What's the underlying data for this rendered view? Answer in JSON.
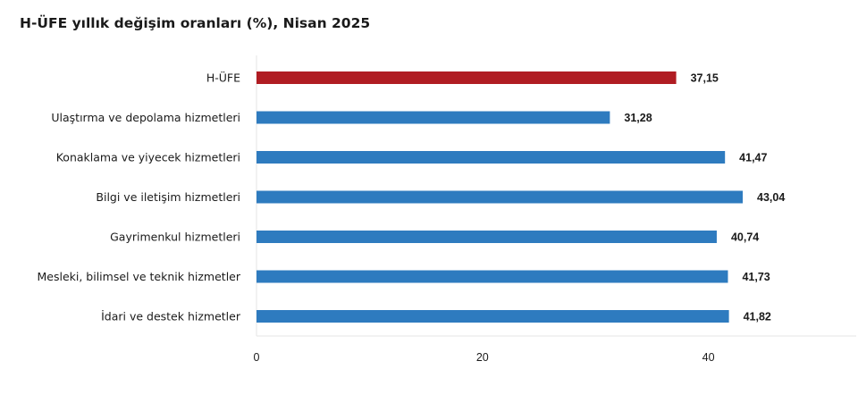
{
  "chart_data": {
    "type": "bar",
    "orientation": "horizontal",
    "title": "H-ÜFE yıllık değişim oranları (%), Nisan 2025",
    "categories": [
      "H-ÜFE",
      "Ulaştırma ve depolama hizmetleri",
      "Konaklama ve yiyecek hizmetleri",
      "Bilgi ve iletişim hizmetleri",
      "Gayrimenkul hizmetleri",
      "Mesleki, bilimsel ve teknik hizmetler",
      "İdari ve destek hizmetler"
    ],
    "values": [
      37.15,
      31.28,
      41.47,
      43.04,
      40.74,
      41.73,
      41.82
    ],
    "value_labels": [
      "37,15",
      "31,28",
      "41,47",
      "43,04",
      "40,74",
      "41,73",
      "41,82"
    ],
    "xlim": [
      0,
      53
    ],
    "x_ticks": [
      0,
      20,
      40
    ],
    "x_tick_labels": [
      "0",
      "20",
      "40"
    ],
    "xlabel": "",
    "ylabel": "",
    "grid": false,
    "legend": "none",
    "colors": {
      "highlight": "#b01c22",
      "default": "#2e7bbf",
      "axis": "#e6e6e6",
      "text": "#1a1a1a"
    },
    "highlight_index": 0
  }
}
